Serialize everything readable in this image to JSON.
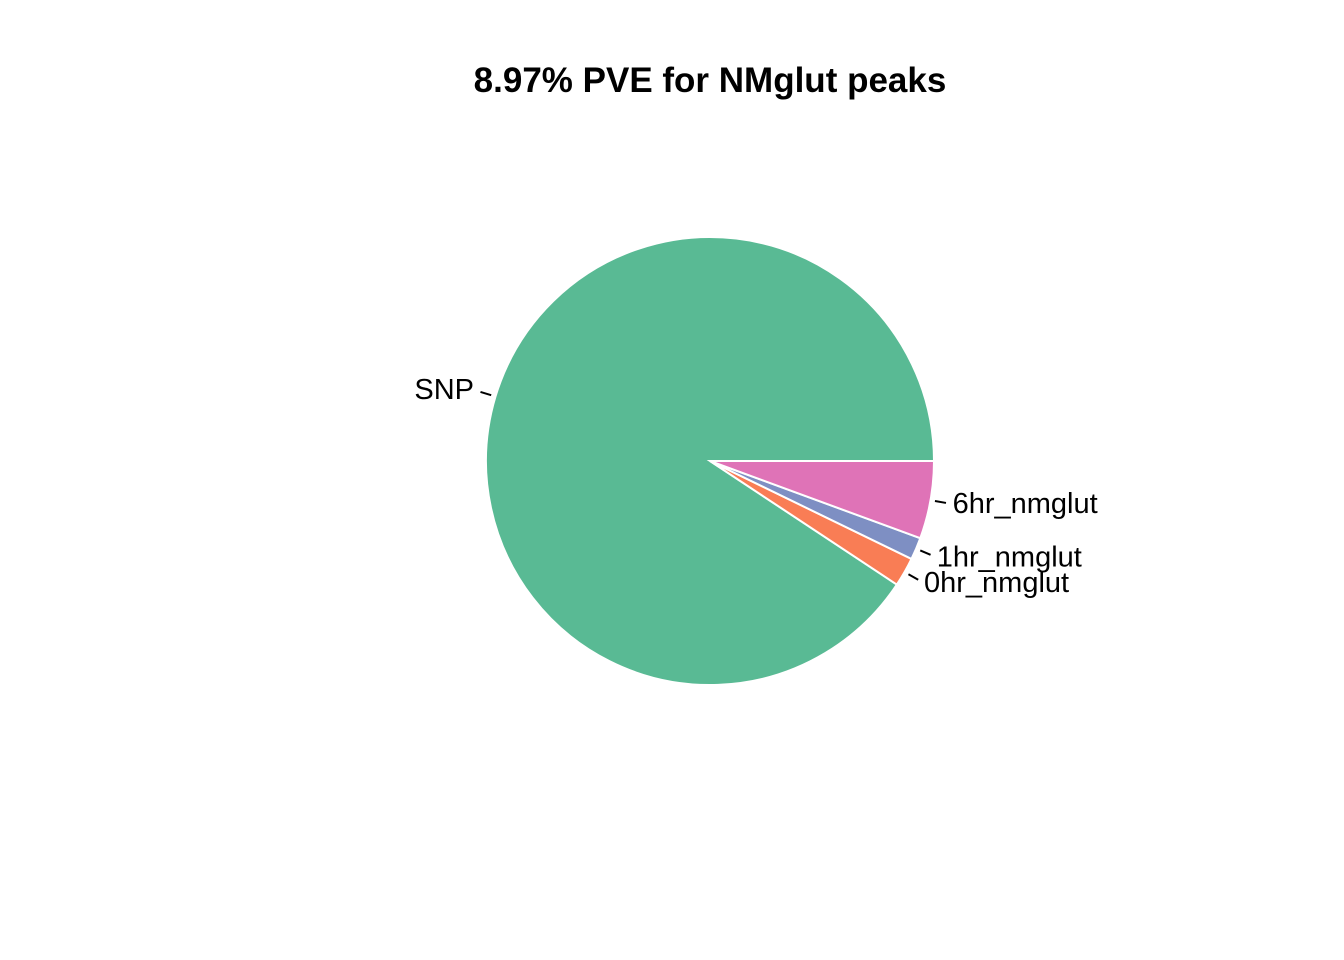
{
  "chart_data": {
    "type": "pie",
    "title": "8.97% PVE for NMglut peaks",
    "labels": [
      "SNP",
      "0hr_nmglut",
      "1hr_nmglut",
      "6hr_nmglut"
    ],
    "values": [
      0.907,
      0.021,
      0.016,
      0.056
    ],
    "colors": [
      "#59BA94",
      "#F97D55",
      "#7E8FC3",
      "#DF73B7"
    ],
    "start_direction": "east",
    "rotation": "counterclockwise",
    "slice_border_color": "#ffffff"
  }
}
